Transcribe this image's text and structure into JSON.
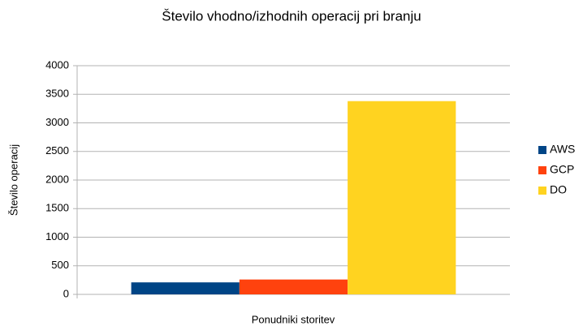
{
  "chart_data": {
    "type": "bar",
    "title": "Število vhodno/izhodnih operacij pri branju",
    "x_label": "Ponudniki storitev",
    "y_label": "Število operacij",
    "categories": [
      null
    ],
    "series": [
      {
        "name": "AWS",
        "color": "#004586",
        "values": [
          210
        ]
      },
      {
        "name": "GCP",
        "color": "#ff420e",
        "values": [
          260
        ]
      },
      {
        "name": "DO",
        "color": "#ffd320",
        "values": [
          3380
        ]
      }
    ],
    "ylim": [
      0,
      4000
    ],
    "yticks": [
      0,
      500,
      1000,
      1500,
      2000,
      2500,
      3000,
      3500,
      4000
    ],
    "grid": true,
    "legend": "right"
  }
}
